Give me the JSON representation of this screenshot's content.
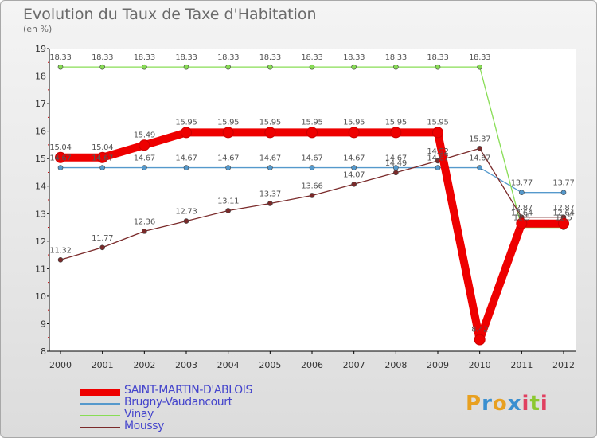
{
  "title": "Evolution du Taux de Taxe d'Habitation",
  "subtitle": "(en %)",
  "logo": {
    "text": "Proxiti",
    "letters": [
      "P",
      "r",
      "o",
      "x",
      "i",
      "t",
      "i"
    ],
    "colors": [
      "#e8a020",
      "#3a8fd0",
      "#e8a020",
      "#3a8fd0",
      "#e04060",
      "#8cc830",
      "#e04060"
    ]
  },
  "chart_data": {
    "type": "line",
    "title": "Evolution du Taux de Taxe d'Habitation",
    "ylabel": "(en %)",
    "ylim": [
      8,
      19
    ],
    "yticks": [
      "8",
      "9",
      "10",
      "11",
      "12",
      "13",
      "14",
      "15",
      "16",
      "17",
      "18",
      "19"
    ],
    "categories": [
      "2000",
      "2001",
      "2002",
      "2003",
      "2004",
      "2005",
      "2006",
      "2007",
      "2008",
      "2009",
      "2010",
      "2011",
      "2012"
    ],
    "grid": false,
    "legend_position": "bottom-left",
    "series": [
      {
        "name": "SAINT-MARTIN-D'ABLOIS",
        "color": "#ee0000",
        "values": [
          15.04,
          15.04,
          15.49,
          15.95,
          15.95,
          15.95,
          15.95,
          15.95,
          15.95,
          15.95,
          8.42,
          12.64,
          12.64
        ],
        "labels": [
          "15.04",
          "15.04",
          "15.49",
          "15.95",
          "15.95",
          "15.95",
          "15.95",
          "15.95",
          "15.95",
          "15.95",
          "8.42",
          "12.64",
          "12.64"
        ]
      },
      {
        "name": "Brugny-Vaudancourt",
        "color": "#5599cc",
        "values": [
          14.67,
          14.67,
          14.67,
          14.67,
          14.67,
          14.67,
          14.67,
          14.67,
          14.67,
          14.67,
          14.67,
          13.77,
          13.77
        ],
        "labels": [
          "14.67",
          "14.67",
          "14.67",
          "14.67",
          "14.67",
          "14.67",
          "14.67",
          "14.67",
          "14.67",
          "14.67",
          "14.67",
          "13.77",
          "13.77"
        ]
      },
      {
        "name": "Vinay",
        "color": "#88dd55",
        "values": [
          18.33,
          18.33,
          18.33,
          18.33,
          18.33,
          18.33,
          18.33,
          18.33,
          18.33,
          18.33,
          18.33,
          12.5,
          12.5
        ],
        "labels": [
          "18.33",
          "18.33",
          "18.33",
          "18.33",
          "18.33",
          "18.33",
          "18.33",
          "18.33",
          "18.33",
          "18.33",
          "18.33",
          "12.5",
          "12.5"
        ]
      },
      {
        "name": "Moussy",
        "color": "#7a2a2a",
        "values": [
          11.32,
          11.77,
          12.36,
          12.73,
          13.11,
          13.37,
          13.66,
          14.07,
          14.49,
          14.92,
          15.37,
          12.87,
          12.87
        ],
        "labels": [
          "11.32",
          "11.77",
          "12.36",
          "12.73",
          "13.11",
          "13.37",
          "13.66",
          "14.07",
          "14.49",
          "14.92",
          "15.37",
          "12.87",
          "12.87"
        ]
      }
    ]
  }
}
